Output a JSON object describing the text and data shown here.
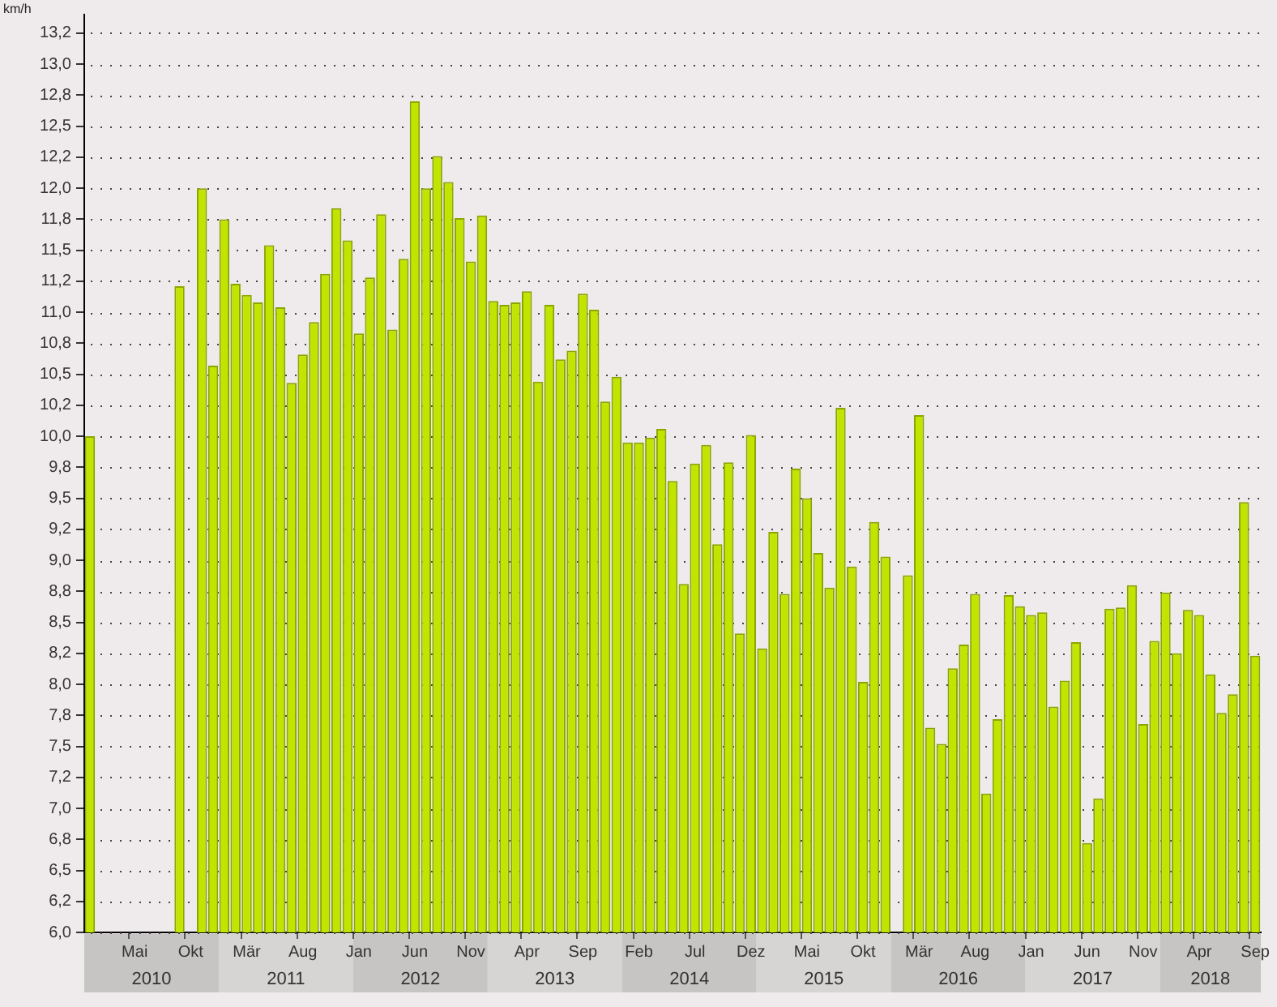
{
  "chart_data": {
    "type": "bar",
    "ylabel": "km/h",
    "color": "#c2e500",
    "categories": [
      null,
      null,
      null,
      null,
      "Mai",
      null,
      null,
      null,
      null,
      "Okt",
      null,
      null,
      null,
      null,
      "Mär",
      null,
      null,
      null,
      null,
      "Aug",
      null,
      null,
      null,
      null,
      "Jan",
      null,
      null,
      null,
      null,
      "Jun",
      null,
      null,
      null,
      null,
      "Nov",
      null,
      null,
      null,
      null,
      "Apr",
      null,
      null,
      null,
      null,
      "Sep",
      null,
      null,
      null,
      null,
      "Feb",
      null,
      null,
      null,
      null,
      "Jul",
      null,
      null,
      null,
      null,
      "Dez",
      null,
      null,
      null,
      null,
      "Mai",
      null,
      null,
      null,
      null,
      "Okt",
      null,
      null,
      null,
      null,
      "Mär",
      null,
      null,
      null,
      null,
      "Aug",
      null,
      null,
      null,
      null,
      "Jan",
      null,
      null,
      null,
      null,
      "Jun",
      null,
      null,
      null,
      null,
      "Nov",
      null,
      null,
      null,
      null,
      "Apr",
      null,
      null,
      null,
      null,
      "Sep"
    ],
    "values": [
      10.0,
      null,
      null,
      null,
      null,
      null,
      null,
      null,
      11.21,
      null,
      12.0,
      10.57,
      11.75,
      11.23,
      11.14,
      11.08,
      11.54,
      11.04,
      10.43,
      10.66,
      10.92,
      11.31,
      11.84,
      11.58,
      10.83,
      11.28,
      11.79,
      10.86,
      11.43,
      12.7,
      12.0,
      12.26,
      12.05,
      11.76,
      11.41,
      11.78,
      11.09,
      11.06,
      11.08,
      11.17,
      10.44,
      11.06,
      10.62,
      10.69,
      11.15,
      11.02,
      10.28,
      10.48,
      9.95,
      9.95,
      9.99,
      10.06,
      9.64,
      8.81,
      9.78,
      9.93,
      9.13,
      9.79,
      8.41,
      10.01,
      8.29,
      9.23,
      8.73,
      9.74,
      9.5,
      9.06,
      8.78,
      10.23,
      8.95,
      8.02,
      9.31,
      9.03,
      null,
      8.88,
      10.17,
      7.65,
      7.52,
      8.13,
      8.32,
      8.73,
      7.12,
      7.72,
      8.72,
      8.63,
      8.56,
      8.58,
      7.82,
      8.03,
      8.34,
      6.72,
      7.08,
      8.61,
      8.62,
      8.8,
      7.68,
      8.35,
      8.74,
      8.25,
      8.6,
      8.56,
      8.08,
      7.77,
      7.92,
      9.47,
      8.23
    ],
    "ylim": [
      6,
      13.4
    ],
    "yticks": [
      {
        "value": 6,
        "label": "6,0"
      },
      {
        "value": 6.25,
        "label": "6,2"
      },
      {
        "value": 6.5,
        "label": "6,5"
      },
      {
        "value": 6.75,
        "label": "6,8"
      },
      {
        "value": 7,
        "label": "7,0"
      },
      {
        "value": 7.25,
        "label": "7,2"
      },
      {
        "value": 7.5,
        "label": "7,5"
      },
      {
        "value": 7.75,
        "label": "7,8"
      },
      {
        "value": 8,
        "label": "8,0"
      },
      {
        "value": 8.25,
        "label": "8,2"
      },
      {
        "value": 8.5,
        "label": "8,5"
      },
      {
        "value": 8.75,
        "label": "8,8"
      },
      {
        "value": 9,
        "label": "9,0"
      },
      {
        "value": 9.25,
        "label": "9,2"
      },
      {
        "value": 9.5,
        "label": "9,5"
      },
      {
        "value": 9.75,
        "label": "9,8"
      },
      {
        "value": 10,
        "label": "10,0"
      },
      {
        "value": 10.25,
        "label": "10,2"
      },
      {
        "value": 10.5,
        "label": "10,5"
      },
      {
        "value": 10.75,
        "label": "10,8"
      },
      {
        "value": 11,
        "label": "11,0"
      },
      {
        "value": 11.25,
        "label": "11,2"
      },
      {
        "value": 11.5,
        "label": "11,5"
      },
      {
        "value": 11.75,
        "label": "11,8"
      },
      {
        "value": 12,
        "label": "12,0"
      },
      {
        "value": 12.25,
        "label": "12,2"
      },
      {
        "value": 12.5,
        "label": "12,5"
      },
      {
        "value": 12.75,
        "label": "12,8"
      },
      {
        "value": 13,
        "label": "13,0"
      },
      {
        "value": 13.25,
        "label": "13,2"
      }
    ],
    "grid": "y",
    "legend": false,
    "annotations": [
      "2010",
      "2011",
      "2012",
      "2013",
      "2014",
      "2015",
      "2016",
      "2017",
      "2018"
    ]
  }
}
